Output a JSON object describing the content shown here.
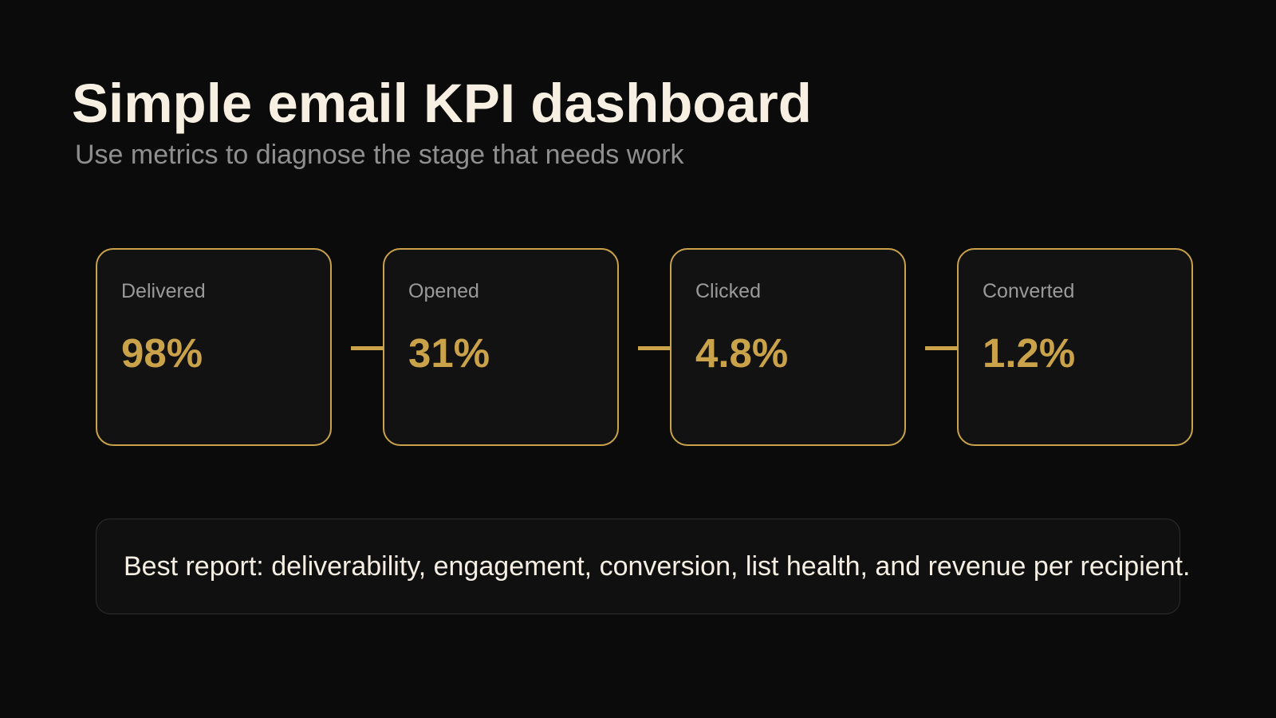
{
  "header": {
    "title": "Simple email KPI dashboard",
    "subtitle": "Use metrics to diagnose the stage that needs work"
  },
  "kpis": [
    {
      "label": "Delivered",
      "value": "98%"
    },
    {
      "label": "Opened",
      "value": "31%"
    },
    {
      "label": "Clicked",
      "value": "4.8%"
    },
    {
      "label": "Converted",
      "value": "1.2%"
    }
  ],
  "note": {
    "text": "Best report: deliverability, engagement, conversion, list health, and revenue per recipient."
  },
  "colors": {
    "background": "#0b0b0b",
    "accent": "#c9a24a",
    "title": "#f7f0e2",
    "muted": "#8f8f8f"
  }
}
